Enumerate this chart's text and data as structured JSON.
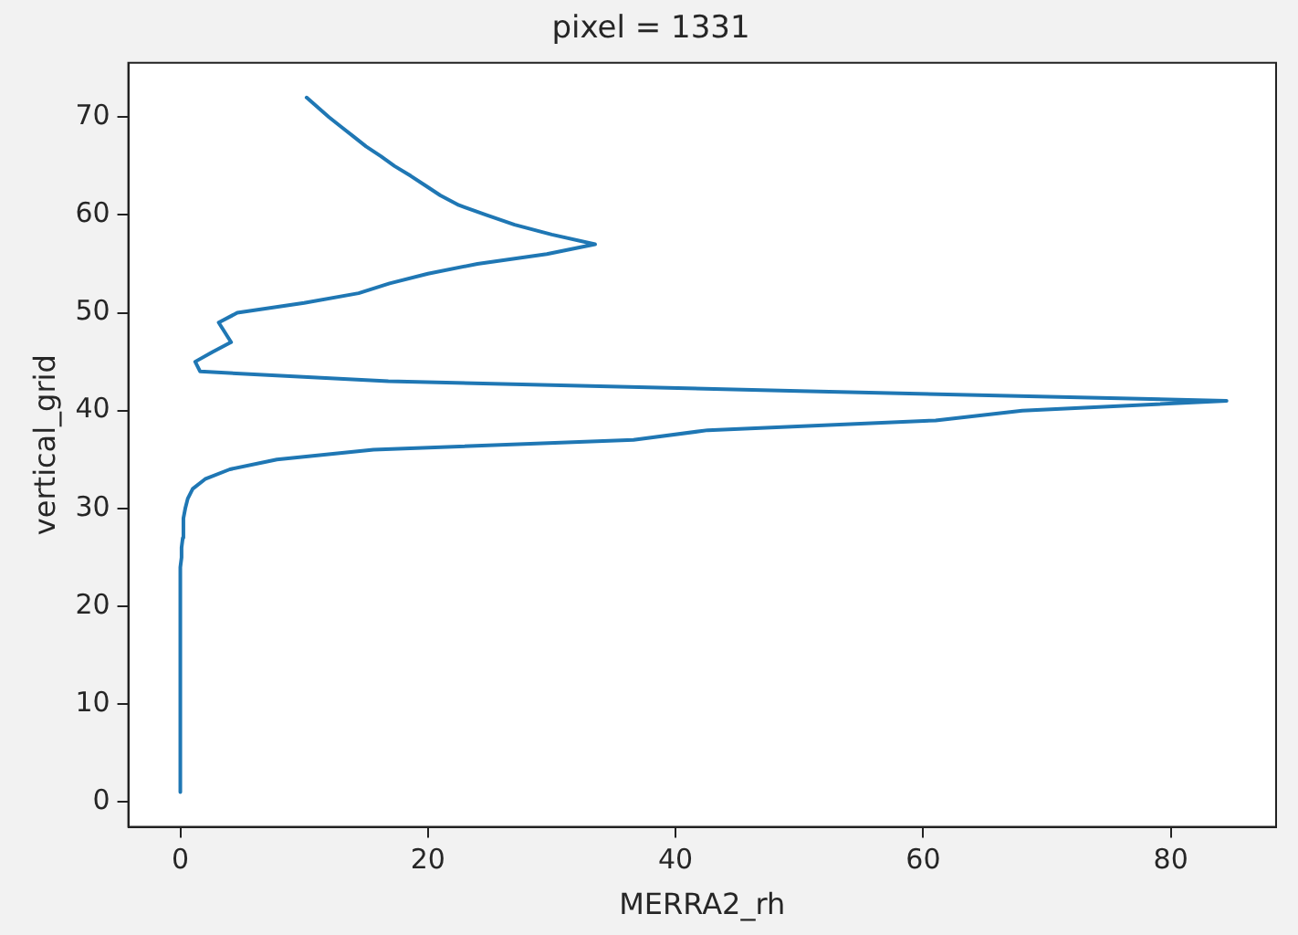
{
  "chart_data": {
    "type": "line",
    "title": "pixel = 1331",
    "xlabel": "MERRA2_rh",
    "ylabel": "vertical_grid",
    "series": [
      {
        "color": "#1f77b4",
        "x": [
          0,
          0,
          0,
          0,
          0,
          0,
          0,
          0,
          0,
          0,
          0,
          0,
          0,
          0,
          0,
          0,
          0,
          0,
          0,
          0,
          0,
          0,
          0,
          0,
          0.1,
          0.1,
          0.2,
          0.2,
          0.3,
          0.4,
          0.6,
          1.0,
          2,
          4,
          7.8,
          15.6,
          36.6,
          42.6,
          61,
          68,
          84.5,
          50,
          16.8,
          1.6,
          1.2,
          2.6,
          4.1,
          3.6,
          3.1,
          4.6,
          10,
          14.4,
          16.9,
          20,
          24,
          29.6,
          33.5,
          30,
          27,
          24.7,
          22.5,
          21,
          19.8,
          18.6,
          17.3,
          16.2,
          15,
          14,
          13,
          12,
          11.1,
          10.2
        ],
        "values": [
          1,
          2,
          3,
          4,
          5,
          6,
          7,
          8,
          9,
          10,
          11,
          12,
          13,
          14,
          15,
          16,
          17,
          18,
          19,
          20,
          21,
          22,
          23,
          24,
          25,
          26,
          27,
          28,
          29,
          30,
          31,
          32,
          33,
          34,
          35,
          36,
          37,
          38,
          39,
          40,
          41,
          42,
          43,
          44,
          45,
          46,
          47,
          48,
          49,
          50,
          51,
          52,
          53,
          54,
          55,
          56,
          57,
          58,
          59,
          60,
          61,
          62,
          63,
          64,
          65,
          66,
          67,
          68,
          69,
          70,
          71,
          72
        ]
      }
    ],
    "xlim": [
      -4.2,
      88.5
    ],
    "xticks": [
      0,
      20,
      40,
      60,
      80
    ],
    "ylim": [
      -2.55,
      75.55
    ],
    "yticks": [
      0,
      10,
      20,
      30,
      40,
      50,
      60,
      70
    ],
    "grid": false,
    "legend": false,
    "marker": "none",
    "line_style": "solid"
  }
}
